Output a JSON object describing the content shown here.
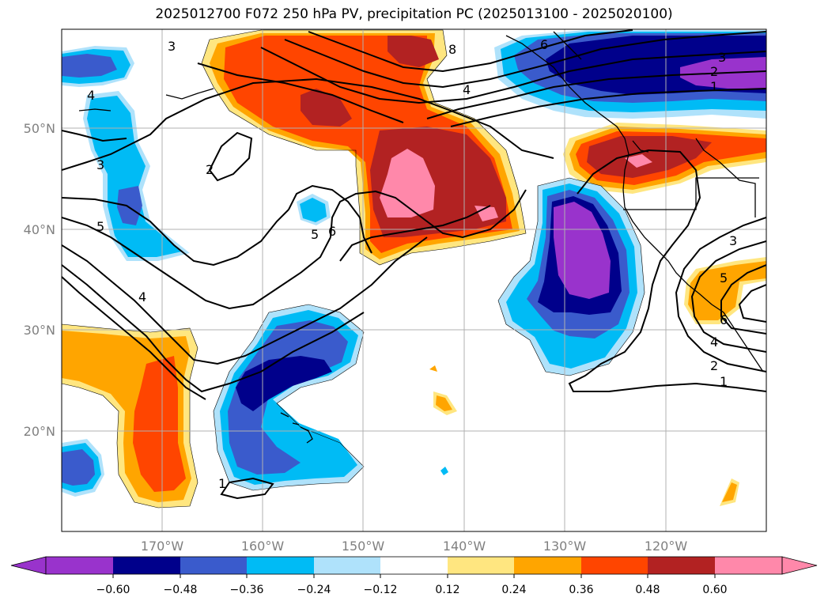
{
  "title": "2025012700 F072 250 hPa PV, precipitation PC (2025013100 - 2025020100)",
  "axes": {
    "longitudes": [
      "170°W",
      "160°W",
      "150°W",
      "140°W",
      "130°W",
      "120°W"
    ],
    "latitudes": [
      "50°N",
      "40°N",
      "30°N",
      "20°N"
    ]
  },
  "colorbar": {
    "ticks": [
      "−0.60",
      "−0.48",
      "−0.36",
      "−0.24",
      "−0.12",
      "0.12",
      "0.24",
      "0.36",
      "0.48",
      "0.60"
    ],
    "colors": [
      "#9933cc",
      "#00008b",
      "#3a5bcc",
      "#00bbf5",
      "#afe2fb",
      "#ffffff",
      "#ffe680",
      "#ffa500",
      "#ff4500",
      "#b22222",
      "#ff88aa"
    ]
  },
  "contour_labels": [
    "3",
    "4",
    "2",
    "3",
    "5",
    "4",
    "5",
    "6",
    "8",
    "4",
    "6",
    "3",
    "2",
    "1",
    "3",
    "5",
    "6",
    "4",
    "2",
    "1",
    "1"
  ]
}
